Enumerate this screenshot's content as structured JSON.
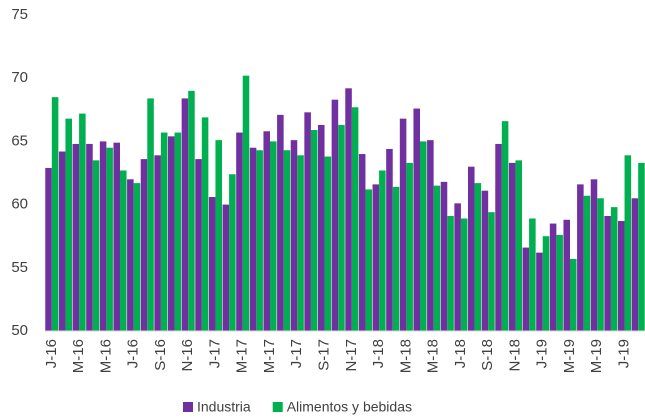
{
  "chart_data": {
    "type": "bar",
    "categories": [
      "J-16",
      null,
      "M-16",
      null,
      "M-16",
      null,
      "J-16",
      null,
      "S-16",
      null,
      "N-16",
      null,
      "J-17",
      null,
      "M-17",
      null,
      "M-17",
      null,
      "J-17",
      null,
      "S-17",
      null,
      "N-17",
      null,
      "J-18",
      null,
      "M-18",
      null,
      "M-18",
      null,
      "J-18",
      null,
      "S-18",
      null,
      "N-18",
      null,
      "J-19",
      null,
      "M-19",
      null,
      "M-19",
      null,
      "J-19",
      null
    ],
    "series": [
      {
        "name": "Industria",
        "color": "#7030a0",
        "values": [
          62.9,
          64.2,
          64.8,
          64.8,
          65.0,
          64.9,
          62.0,
          63.6,
          63.9,
          65.4,
          68.4,
          63.6,
          60.6,
          60.0,
          65.7,
          64.5,
          65.8,
          67.1,
          65.1,
          67.3,
          66.3,
          68.3,
          69.2,
          64.0,
          61.6,
          64.4,
          66.8,
          67.6,
          65.1,
          61.8,
          60.1,
          63.0,
          61.1,
          64.8,
          63.3,
          56.6,
          56.2,
          58.5,
          58.8,
          61.6,
          62.0,
          59.1,
          58.7,
          60.5
        ]
      },
      {
        "name": "Alimentos y bebidas",
        "color": "#00b050",
        "values": [
          68.5,
          66.8,
          67.2,
          63.5,
          64.5,
          62.7,
          61.7,
          68.4,
          65.7,
          65.7,
          69.0,
          66.9,
          65.1,
          62.4,
          70.2,
          64.3,
          65.0,
          64.3,
          63.9,
          65.9,
          63.8,
          66.3,
          67.7,
          61.2,
          62.7,
          61.4,
          63.3,
          65.0,
          61.5,
          59.1,
          58.9,
          61.7,
          59.4,
          66.6,
          63.5,
          58.9,
          57.5,
          57.6,
          55.7,
          60.7,
          60.5,
          59.8,
          63.9,
          63.3
        ]
      }
    ],
    "ylim": [
      50,
      75
    ],
    "yticks": [
      50,
      55,
      60,
      65,
      70,
      75
    ],
    "legend": "bottom"
  }
}
